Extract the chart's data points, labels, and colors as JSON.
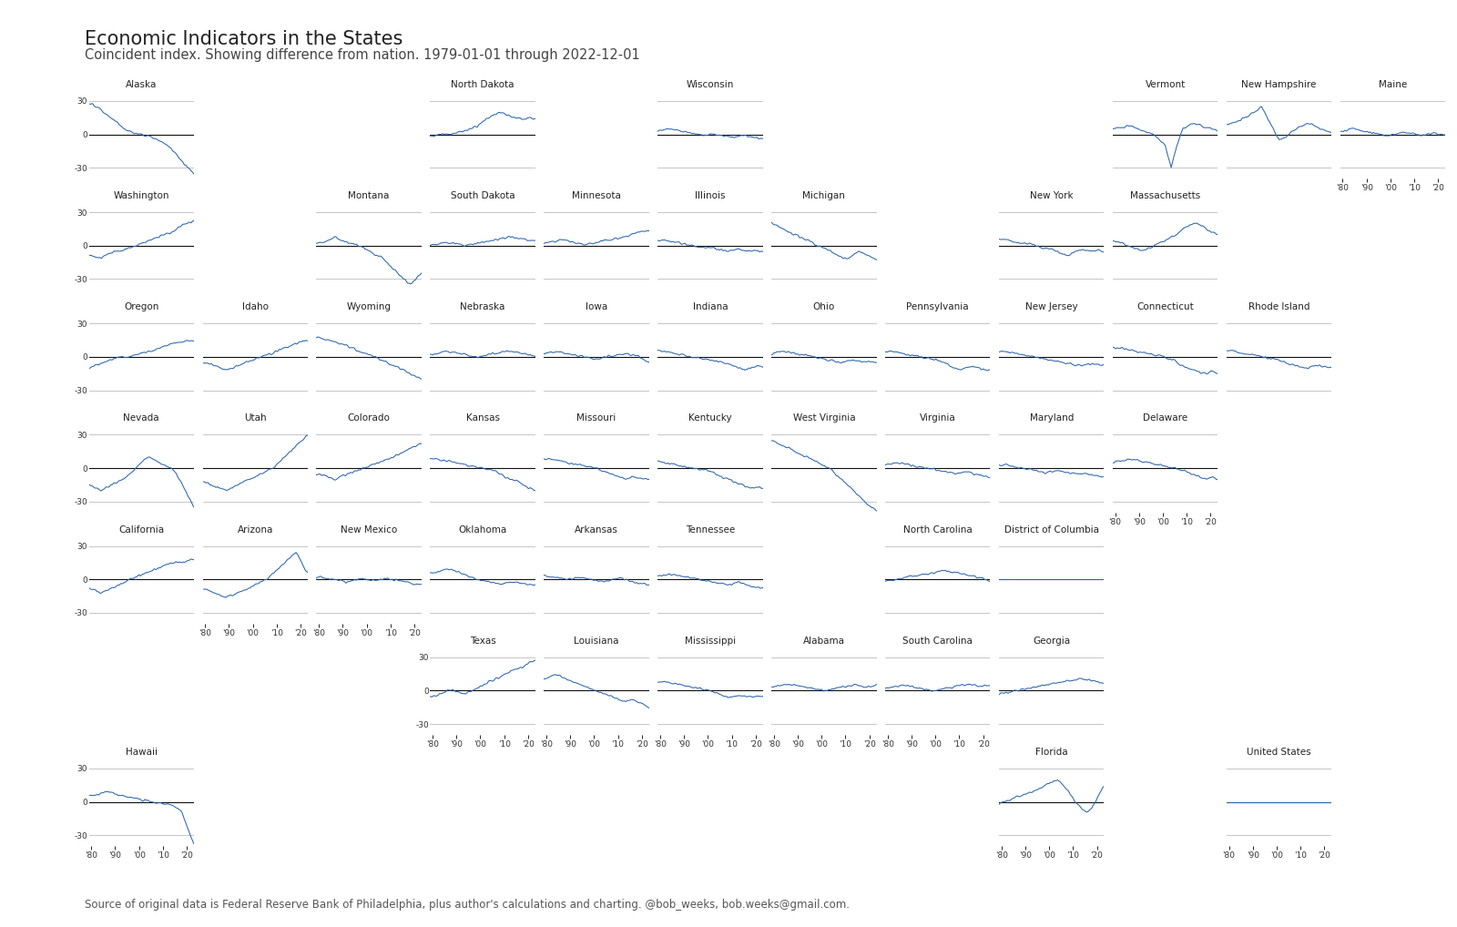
{
  "title": "Economic Indicators in the States",
  "subtitle": "Coincident index. Showing difference from nation. 1979-01-01 through 2022-12-01",
  "footnote": "Source of original data is Federal Reserve Bank of Philadelphia, plus author's calculations and charting. @bob_weeks, bob.weeks@gmail.com.",
  "line_color": "#2B65B0",
  "zero_line_color": "#111111",
  "grid_color": "#bbbbbb",
  "bg_color": "#ffffff",
  "title_color": "#333333",
  "ylim": [
    -40,
    40
  ],
  "yticks": [
    -30,
    0,
    30
  ],
  "layout": [
    [
      "Alaska",
      "",
      "",
      "North Dakota",
      "",
      "Wisconsin",
      "",
      "",
      "",
      "Vermont",
      "New Hampshire",
      "Maine"
    ],
    [
      "Washington",
      "",
      "Montana",
      "South Dakota",
      "Minnesota",
      "Illinois",
      "Michigan",
      "",
      "New York",
      "Massachusetts",
      "",
      ""
    ],
    [
      "Oregon",
      "Idaho",
      "Wyoming",
      "Nebraska",
      "Iowa",
      "Indiana",
      "Ohio",
      "Pennsylvania",
      "New Jersey",
      "Connecticut",
      "Rhode Island",
      ""
    ],
    [
      "Nevada",
      "Utah",
      "Colorado",
      "Kansas",
      "Missouri",
      "Kentucky",
      "West Virginia",
      "Virginia",
      "Maryland",
      "Delaware",
      "",
      ""
    ],
    [
      "California",
      "Arizona",
      "New Mexico",
      "Oklahoma",
      "Arkansas",
      "Tennessee",
      "",
      "North Carolina",
      "District of Columbia",
      "",
      "",
      ""
    ],
    [
      "",
      "",
      "",
      "Texas",
      "Louisiana",
      "Mississippi",
      "Alabama",
      "South Carolina",
      "Georgia",
      "",
      "",
      ""
    ],
    [
      "Hawaii",
      "",
      "",
      "",
      "",
      "",
      "",
      "",
      "Florida",
      "",
      "United States",
      ""
    ]
  ],
  "series": {
    "Alaska": [
      28,
      26,
      22,
      18,
      14,
      10,
      5,
      3,
      1,
      0,
      -1,
      -3,
      -5,
      -8,
      -12,
      -18,
      -25,
      -30,
      -35
    ],
    "North Dakota": [
      -2,
      -1,
      0,
      0,
      1,
      2,
      3,
      5,
      8,
      12,
      15,
      18,
      20,
      18,
      16,
      15,
      14,
      15,
      14
    ],
    "Wisconsin": [
      3,
      4,
      5,
      4,
      3,
      2,
      1,
      0,
      -1,
      0,
      0,
      -1,
      -2,
      -3,
      -2,
      -1,
      -2,
      -3,
      -4
    ],
    "Vermont": [
      5,
      6,
      7,
      8,
      6,
      4,
      2,
      0,
      -5,
      -10,
      -30,
      -10,
      5,
      8,
      10,
      8,
      6,
      5,
      3
    ],
    "New Hampshire": [
      8,
      10,
      12,
      15,
      18,
      20,
      25,
      15,
      5,
      -5,
      -3,
      2,
      5,
      8,
      10,
      8,
      5,
      3,
      2
    ],
    "Maine": [
      3,
      4,
      5,
      4,
      3,
      2,
      1,
      0,
      -1,
      0,
      1,
      2,
      1,
      0,
      -1,
      0,
      1,
      0,
      -1
    ],
    "Washington": [
      -8,
      -10,
      -12,
      -8,
      -6,
      -5,
      -4,
      -2,
      0,
      2,
      4,
      6,
      8,
      10,
      12,
      15,
      18,
      20,
      22
    ],
    "Montana": [
      2,
      3,
      5,
      8,
      5,
      3,
      2,
      0,
      -2,
      -5,
      -8,
      -10,
      -15,
      -20,
      -25,
      -30,
      -35,
      -30,
      -25
    ],
    "South Dakota": [
      0,
      1,
      2,
      3,
      2,
      1,
      0,
      1,
      2,
      3,
      4,
      5,
      6,
      7,
      8,
      7,
      6,
      5,
      4
    ],
    "Minnesota": [
      2,
      3,
      4,
      5,
      4,
      3,
      2,
      1,
      2,
      3,
      4,
      5,
      6,
      7,
      8,
      10,
      12,
      13,
      14
    ],
    "Illinois": [
      5,
      5,
      4,
      3,
      2,
      1,
      0,
      -1,
      -2,
      -2,
      -3,
      -4,
      -5,
      -4,
      -3,
      -4,
      -5,
      -4,
      -5
    ],
    "Michigan": [
      20,
      18,
      15,
      12,
      10,
      8,
      5,
      3,
      0,
      -2,
      -5,
      -8,
      -10,
      -12,
      -8,
      -5,
      -8,
      -10,
      -12
    ],
    "New York": [
      5,
      5,
      4,
      3,
      2,
      1,
      0,
      -1,
      -2,
      -3,
      -5,
      -8,
      -10,
      -5,
      -3,
      -4,
      -5,
      -4,
      -5
    ],
    "Massachusetts": [
      5,
      3,
      1,
      -1,
      -3,
      -5,
      -3,
      0,
      3,
      5,
      8,
      10,
      15,
      18,
      20,
      18,
      15,
      12,
      10
    ],
    "Oregon": [
      -10,
      -8,
      -6,
      -4,
      -2,
      0,
      0,
      0,
      2,
      3,
      5,
      6,
      8,
      10,
      12,
      13,
      14,
      15,
      14
    ],
    "Idaho": [
      -5,
      -6,
      -8,
      -10,
      -12,
      -10,
      -8,
      -6,
      -4,
      -2,
      0,
      2,
      4,
      6,
      8,
      10,
      12,
      14,
      15
    ],
    "Wyoming": [
      18,
      16,
      15,
      14,
      12,
      10,
      8,
      6,
      4,
      2,
      0,
      -2,
      -5,
      -8,
      -10,
      -12,
      -15,
      -18,
      -20
    ],
    "Nebraska": [
      2,
      3,
      4,
      5,
      4,
      3,
      2,
      1,
      0,
      1,
      2,
      3,
      4,
      5,
      5,
      4,
      3,
      2,
      1
    ],
    "Iowa": [
      3,
      4,
      5,
      4,
      3,
      2,
      1,
      0,
      -1,
      -2,
      -1,
      0,
      1,
      2,
      3,
      2,
      1,
      -2,
      -5
    ],
    "Indiana": [
      5,
      5,
      4,
      3,
      2,
      1,
      0,
      -1,
      -2,
      -3,
      -4,
      -5,
      -6,
      -8,
      -10,
      -12,
      -10,
      -8,
      -10
    ],
    "Ohio": [
      3,
      4,
      5,
      4,
      3,
      2,
      1,
      0,
      -1,
      -2,
      -3,
      -4,
      -5,
      -4,
      -3,
      -4,
      -5,
      -4,
      -5
    ],
    "Pennsylvania": [
      5,
      5,
      4,
      3,
      2,
      1,
      0,
      -1,
      -2,
      -3,
      -5,
      -8,
      -10,
      -12,
      -10,
      -8,
      -10,
      -12,
      -12
    ],
    "New Jersey": [
      5,
      5,
      4,
      3,
      2,
      1,
      0,
      -1,
      -2,
      -3,
      -4,
      -5,
      -6,
      -7,
      -8,
      -7,
      -6,
      -7,
      -8
    ],
    "Connecticut": [
      8,
      8,
      7,
      6,
      5,
      4,
      3,
      2,
      1,
      0,
      -2,
      -5,
      -8,
      -10,
      -12,
      -14,
      -15,
      -13,
      -15
    ],
    "Rhode Island": [
      5,
      5,
      4,
      3,
      2,
      1,
      0,
      -1,
      -2,
      -3,
      -5,
      -7,
      -8,
      -9,
      -10,
      -8,
      -7,
      -9,
      -10
    ],
    "Nevada": [
      -15,
      -18,
      -20,
      -18,
      -15,
      -12,
      -10,
      -5,
      0,
      5,
      10,
      8,
      5,
      2,
      0,
      -5,
      -15,
      -25,
      -35
    ],
    "Utah": [
      -12,
      -14,
      -16,
      -18,
      -20,
      -18,
      -15,
      -12,
      -10,
      -8,
      -5,
      -2,
      0,
      5,
      10,
      15,
      20,
      25,
      30
    ],
    "Colorado": [
      -5,
      -6,
      -8,
      -10,
      -8,
      -6,
      -4,
      -2,
      0,
      2,
      4,
      6,
      8,
      10,
      12,
      15,
      18,
      20,
      22
    ],
    "Kansas": [
      8,
      8,
      7,
      6,
      5,
      4,
      3,
      2,
      1,
      0,
      -1,
      -2,
      -5,
      -8,
      -10,
      -12,
      -15,
      -18,
      -20
    ],
    "Missouri": [
      8,
      8,
      7,
      6,
      5,
      4,
      3,
      2,
      1,
      0,
      -2,
      -4,
      -6,
      -8,
      -10,
      -8,
      -9,
      -10,
      -10
    ],
    "Kentucky": [
      5,
      5,
      4,
      3,
      2,
      1,
      0,
      -1,
      -2,
      -3,
      -5,
      -8,
      -10,
      -12,
      -14,
      -16,
      -18,
      -17,
      -18
    ],
    "West Virginia": [
      25,
      22,
      20,
      18,
      15,
      12,
      10,
      8,
      5,
      2,
      0,
      -5,
      -10,
      -15,
      -20,
      -25,
      -30,
      -35,
      -38
    ],
    "Virginia": [
      3,
      4,
      5,
      4,
      3,
      2,
      1,
      0,
      -1,
      -2,
      -3,
      -4,
      -5,
      -4,
      -3,
      -5,
      -6,
      -7,
      -8
    ],
    "Maryland": [
      3,
      3,
      2,
      1,
      0,
      -1,
      -2,
      -3,
      -4,
      -3,
      -2,
      -3,
      -4,
      -5,
      -6,
      -5,
      -6,
      -7,
      -8
    ],
    "Delaware": [
      5,
      6,
      7,
      8,
      7,
      6,
      5,
      4,
      3,
      2,
      1,
      0,
      -2,
      -4,
      -6,
      -8,
      -10,
      -8,
      -10
    ],
    "California": [
      -8,
      -10,
      -12,
      -10,
      -8,
      -5,
      -3,
      0,
      2,
      4,
      6,
      8,
      10,
      12,
      14,
      15,
      16,
      17,
      18
    ],
    "Arizona": [
      -8,
      -10,
      -12,
      -14,
      -16,
      -14,
      -12,
      -10,
      -8,
      -5,
      -2,
      0,
      5,
      10,
      15,
      20,
      25,
      15,
      5
    ],
    "New Mexico": [
      2,
      2,
      1,
      0,
      -1,
      -2,
      -1,
      0,
      1,
      0,
      -1,
      0,
      1,
      0,
      -1,
      -2,
      -3,
      -4,
      -5
    ],
    "Oklahoma": [
      5,
      6,
      8,
      10,
      8,
      6,
      4,
      2,
      0,
      -1,
      -2,
      -3,
      -4,
      -3,
      -2,
      -3,
      -4,
      -5,
      -5
    ],
    "Arkansas": [
      3,
      3,
      2,
      1,
      0,
      1,
      2,
      1,
      0,
      -1,
      -2,
      -1,
      0,
      1,
      0,
      -2,
      -3,
      -4,
      -5
    ],
    "Tennessee": [
      3,
      4,
      5,
      4,
      3,
      2,
      1,
      0,
      -1,
      -2,
      -3,
      -4,
      -5,
      -4,
      -3,
      -5,
      -6,
      -7,
      -8
    ],
    "North Carolina": [
      -2,
      -1,
      0,
      1,
      2,
      3,
      4,
      5,
      6,
      7,
      8,
      7,
      6,
      5,
      4,
      3,
      2,
      1,
      -2
    ],
    "District of Columbia": [
      0,
      0,
      0,
      0,
      0,
      0,
      0,
      0,
      0,
      0,
      0,
      0,
      0,
      0,
      0,
      0,
      0,
      0,
      0
    ],
    "Texas": [
      -5,
      -5,
      -3,
      0,
      0,
      -2,
      -3,
      0,
      2,
      5,
      8,
      10,
      12,
      15,
      18,
      20,
      22,
      25,
      28
    ],
    "Louisiana": [
      10,
      12,
      15,
      12,
      10,
      8,
      6,
      4,
      2,
      0,
      -2,
      -4,
      -6,
      -8,
      -10,
      -8,
      -10,
      -12,
      -15
    ],
    "Mississippi": [
      8,
      8,
      7,
      6,
      5,
      4,
      3,
      2,
      1,
      0,
      -2,
      -4,
      -6,
      -5,
      -4,
      -5,
      -6,
      -5,
      -5
    ],
    "Alabama": [
      3,
      4,
      5,
      6,
      5,
      4,
      3,
      2,
      1,
      0,
      1,
      2,
      3,
      4,
      5,
      4,
      3,
      4,
      5
    ],
    "South Carolina": [
      2,
      3,
      4,
      5,
      4,
      3,
      2,
      1,
      0,
      1,
      2,
      3,
      4,
      5,
      6,
      5,
      4,
      5,
      5
    ],
    "Georgia": [
      -3,
      -2,
      -1,
      0,
      1,
      2,
      3,
      4,
      5,
      6,
      7,
      8,
      9,
      10,
      11,
      10,
      9,
      8,
      7
    ],
    "Hawaii": [
      5,
      6,
      8,
      10,
      8,
      6,
      5,
      4,
      3,
      2,
      1,
      0,
      -1,
      -2,
      -3,
      -5,
      -10,
      -25,
      -38
    ],
    "Florida": [
      -2,
      0,
      2,
      4,
      6,
      8,
      10,
      12,
      15,
      18,
      20,
      15,
      8,
      0,
      -5,
      -10,
      -5,
      5,
      15
    ],
    "United States": [
      0,
      0,
      0,
      0,
      0,
      0,
      0,
      0,
      0,
      0,
      0,
      0,
      0,
      0,
      0,
      0,
      0,
      0,
      0
    ]
  }
}
